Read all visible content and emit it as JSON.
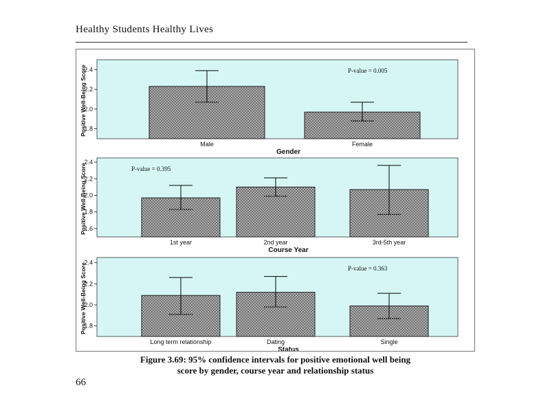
{
  "header": {
    "title": "Healthy Students Healthy Lives"
  },
  "figure": {
    "caption_line1": "Figure 3.69: 95% confidence intervals for positive emotional well being",
    "caption_line2": "score by gender, course year and relationship status"
  },
  "page_number": "66",
  "colors": {
    "plot_bg": "#d6f6f6",
    "bar_fill": "#b8b8b8",
    "bar_stroke": "#222222"
  },
  "chart_data": [
    {
      "type": "bar",
      "xlabel": "Gender",
      "ylabel": "Positive Well-Being Score",
      "categories": [
        "Male",
        "Female"
      ],
      "values": [
        2.23,
        1.97
      ],
      "ci_lower": [
        2.07,
        1.88
      ],
      "ci_upper": [
        2.39,
        2.07
      ],
      "ylim": [
        1.7,
        2.5
      ],
      "yticks": [
        "1.8",
        "2.0",
        "2.2",
        "2.4"
      ],
      "annotation": "P-value = 0.005",
      "annotation_pos": "top-right"
    },
    {
      "type": "bar",
      "xlabel": "Course Year",
      "ylabel": "Positive Well-Being Score",
      "categories": [
        "1st year",
        "2nd year",
        "3rd-5th year"
      ],
      "values": [
        1.97,
        2.1,
        2.07
      ],
      "ci_lower": [
        1.83,
        1.99,
        1.77
      ],
      "ci_upper": [
        2.12,
        2.21,
        2.36
      ],
      "ylim": [
        1.5,
        2.45
      ],
      "yticks": [
        "1.6",
        "1.8",
        "2.0",
        "2.2",
        "2.4"
      ],
      "annotation": "P-value = 0.395",
      "annotation_pos": "top-left"
    },
    {
      "type": "bar",
      "xlabel": "Status",
      "ylabel": "Positive Well-Being Score",
      "categories": [
        "Long term relationship",
        "Dating",
        "Single"
      ],
      "values": [
        2.09,
        2.12,
        1.99
      ],
      "ci_lower": [
        1.91,
        1.98,
        1.87
      ],
      "ci_upper": [
        2.26,
        2.27,
        2.11
      ],
      "ylim": [
        1.7,
        2.45
      ],
      "yticks": [
        "1.8",
        "2.0",
        "2.2",
        "2.4"
      ],
      "annotation": "P-value = 0.363",
      "annotation_pos": "top-right"
    }
  ]
}
